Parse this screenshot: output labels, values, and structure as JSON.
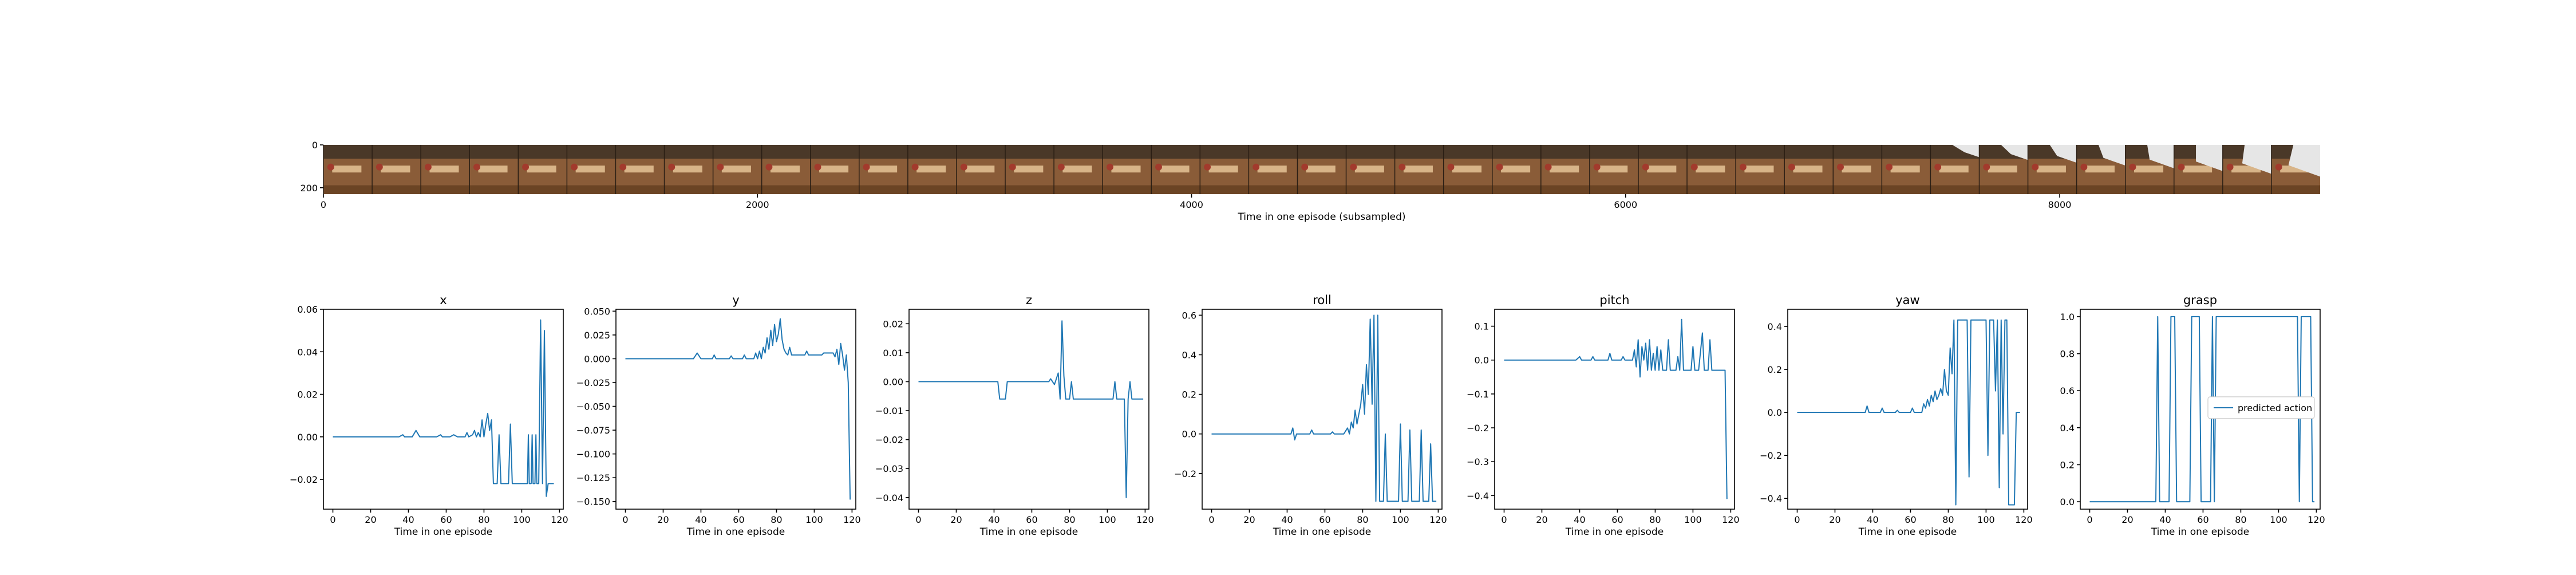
{
  "chart_data": [
    {
      "type": "image-strip",
      "xlabel": "Time in one episode (subsampled)",
      "x_ticks": [
        0,
        2000,
        4000,
        6000,
        8000
      ],
      "y_ticks": [
        0,
        200
      ],
      "xlim": [
        0,
        9200
      ],
      "ylim": [
        0,
        230
      ],
      "frame_count": 41,
      "colors": {
        "floor": "#8a5c38",
        "wall": "#4a3828",
        "shelf": "#d8b488",
        "object": "#a23a2c",
        "arm": "#e6e6e6"
      },
      "arm_visible_from_frame": 33
    },
    {
      "type": "line",
      "title": "x",
      "xlabel": "Time in one episode",
      "xlim": [
        -5,
        122
      ],
      "ylim": [
        -0.034,
        0.06
      ],
      "x_ticks": [
        0,
        20,
        40,
        60,
        80,
        100,
        120
      ],
      "y_ticks": [
        0.06,
        0.04,
        0.02,
        0.0,
        -0.02
      ],
      "y_tick_labels": [
        "0.06",
        "0.04",
        "0.02",
        "0.00",
        "−0.02"
      ],
      "points": [
        [
          0,
          0
        ],
        [
          35,
          0
        ],
        [
          37,
          0.001
        ],
        [
          38,
          0
        ],
        [
          42,
          0
        ],
        [
          44,
          0.003
        ],
        [
          46,
          0
        ],
        [
          55,
          0
        ],
        [
          57,
          0.001
        ],
        [
          58,
          0
        ],
        [
          62,
          0
        ],
        [
          64,
          0.001
        ],
        [
          66,
          0
        ],
        [
          70,
          0
        ],
        [
          71,
          0.002
        ],
        [
          72,
          0
        ],
        [
          74,
          0.001
        ],
        [
          75,
          0.003
        ],
        [
          76,
          0
        ],
        [
          77,
          0.002
        ],
        [
          78,
          0
        ],
        [
          79,
          0.008
        ],
        [
          80,
          0
        ],
        [
          81,
          0.006
        ],
        [
          82,
          0.011
        ],
        [
          83,
          0.003
        ],
        [
          84,
          0.008
        ],
        [
          85,
          -0.022
        ],
        [
          87,
          -0.022
        ],
        [
          88,
          0.001
        ],
        [
          89,
          -0.022
        ],
        [
          93,
          -0.022
        ],
        [
          94,
          0.006
        ],
        [
          95,
          -0.022
        ],
        [
          103,
          -0.022
        ],
        [
          103.5,
          0.001
        ],
        [
          104,
          -0.022
        ],
        [
          105,
          -0.022
        ],
        [
          105.5,
          0.001
        ],
        [
          106,
          -0.022
        ],
        [
          107,
          -0.022
        ],
        [
          107.5,
          0.001
        ],
        [
          108,
          -0.022
        ],
        [
          109,
          -0.022
        ],
        [
          110,
          0.055
        ],
        [
          111,
          -0.022
        ],
        [
          112,
          0.05
        ],
        [
          113,
          -0.028
        ],
        [
          114,
          -0.022
        ],
        [
          117,
          -0.022
        ]
      ]
    },
    {
      "type": "line",
      "title": "y",
      "xlabel": "Time in one episode",
      "xlim": [
        -5,
        122
      ],
      "ylim": [
        -0.158,
        0.052
      ],
      "x_ticks": [
        0,
        20,
        40,
        60,
        80,
        100,
        120
      ],
      "y_ticks": [
        0.05,
        0.025,
        0.0,
        -0.025,
        -0.05,
        -0.075,
        -0.1,
        -0.125,
        -0.15
      ],
      "y_tick_labels": [
        "0.050",
        "0.025",
        "0.000",
        "−0.025",
        "−0.050",
        "−0.075",
        "−0.100",
        "−0.125",
        "−0.150"
      ],
      "points": [
        [
          0,
          0
        ],
        [
          36,
          0
        ],
        [
          38,
          0.006
        ],
        [
          40,
          0
        ],
        [
          46,
          0
        ],
        [
          47,
          0.004
        ],
        [
          48,
          0
        ],
        [
          55,
          0
        ],
        [
          56,
          0.003
        ],
        [
          57,
          0
        ],
        [
          62,
          0
        ],
        [
          63,
          0.004
        ],
        [
          64,
          0
        ],
        [
          68,
          0
        ],
        [
          69,
          0.006
        ],
        [
          70,
          0
        ],
        [
          71,
          0.008
        ],
        [
          72,
          0
        ],
        [
          73,
          0.012
        ],
        [
          74,
          0.006
        ],
        [
          75,
          0.022
        ],
        [
          76,
          0.01
        ],
        [
          77,
          0.03
        ],
        [
          78,
          0.014
        ],
        [
          79,
          0.036
        ],
        [
          80,
          0.018
        ],
        [
          81,
          0.026
        ],
        [
          82,
          0.042
        ],
        [
          83,
          0.02
        ],
        [
          84,
          0.01
        ],
        [
          85,
          0.006
        ],
        [
          86,
          0.004
        ],
        [
          87,
          0.012
        ],
        [
          88,
          0.004
        ],
        [
          95,
          0.004
        ],
        [
          96,
          0.008
        ],
        [
          97,
          0.004
        ],
        [
          104,
          0.004
        ],
        [
          105,
          0.006
        ],
        [
          110,
          0.006
        ],
        [
          111,
          0.002
        ],
        [
          112,
          0.01
        ],
        [
          113,
          -0.006
        ],
        [
          114,
          0.016
        ],
        [
          115,
          0.004
        ],
        [
          116,
          -0.012
        ],
        [
          117,
          0.004
        ],
        [
          118,
          -0.025
        ],
        [
          119,
          -0.148
        ]
      ]
    },
    {
      "type": "line",
      "title": "z",
      "xlabel": "Time in one episode",
      "xlim": [
        -5,
        122
      ],
      "ylim": [
        -0.044,
        0.025
      ],
      "x_ticks": [
        0,
        20,
        40,
        60,
        80,
        100,
        120
      ],
      "y_ticks": [
        0.02,
        0.01,
        0.0,
        -0.01,
        -0.02,
        -0.03,
        -0.04
      ],
      "y_tick_labels": [
        "0.02",
        "0.01",
        "0.00",
        "−0.01",
        "−0.02",
        "−0.03",
        "−0.04"
      ],
      "points": [
        [
          0,
          0
        ],
        [
          42,
          0
        ],
        [
          43,
          -0.006
        ],
        [
          46,
          -0.006
        ],
        [
          47,
          0
        ],
        [
          69,
          0
        ],
        [
          70,
          0.001
        ],
        [
          71,
          0
        ],
        [
          72,
          -0.001
        ],
        [
          73,
          0.001
        ],
        [
          74,
          0.003
        ],
        [
          75,
          -0.006
        ],
        [
          76,
          0.021
        ],
        [
          77,
          0.002
        ],
        [
          78,
          -0.006
        ],
        [
          80,
          -0.006
        ],
        [
          81,
          0
        ],
        [
          82,
          -0.006
        ],
        [
          103,
          -0.006
        ],
        [
          104,
          0
        ],
        [
          105,
          -0.006
        ],
        [
          108,
          -0.006
        ],
        [
          109,
          -0.006
        ],
        [
          110,
          -0.04
        ],
        [
          111,
          -0.006
        ],
        [
          112,
          0
        ],
        [
          113,
          -0.006
        ],
        [
          119,
          -0.006
        ]
      ]
    },
    {
      "type": "line",
      "title": "roll",
      "xlabel": "Time in one episode",
      "xlim": [
        -5,
        122
      ],
      "ylim": [
        -0.38,
        0.63
      ],
      "x_ticks": [
        0,
        20,
        40,
        60,
        80,
        100,
        120
      ],
      "y_ticks": [
        0.6,
        0.4,
        0.2,
        0.0,
        -0.2
      ],
      "y_tick_labels": [
        "0.6",
        "0.4",
        "0.2",
        "0.0",
        "−0.2"
      ],
      "points": [
        [
          0,
          0
        ],
        [
          42,
          0
        ],
        [
          43,
          0.03
        ],
        [
          44,
          -0.03
        ],
        [
          45,
          0
        ],
        [
          52,
          0
        ],
        [
          53,
          0.02
        ],
        [
          54,
          0
        ],
        [
          63,
          0
        ],
        [
          64,
          0.01
        ],
        [
          65,
          0
        ],
        [
          70,
          0
        ],
        [
          72,
          0.03
        ],
        [
          73,
          0
        ],
        [
          74,
          0.06
        ],
        [
          75,
          0.03
        ],
        [
          76,
          0.12
        ],
        [
          77,
          0.05
        ],
        [
          78,
          0.1
        ],
        [
          79,
          0.15
        ],
        [
          80,
          0.25
        ],
        [
          81,
          0.1
        ],
        [
          82,
          0.35
        ],
        [
          83,
          0.2
        ],
        [
          84,
          0.58
        ],
        [
          85,
          0.15
        ],
        [
          86,
          0.6
        ],
        [
          87,
          -0.34
        ],
        [
          88,
          0.6
        ],
        [
          89,
          -0.34
        ],
        [
          91,
          -0.34
        ],
        [
          92,
          0
        ],
        [
          93,
          -0.34
        ],
        [
          99,
          -0.34
        ],
        [
          100,
          0.05
        ],
        [
          101,
          -0.34
        ],
        [
          104,
          -0.34
        ],
        [
          105,
          0.02
        ],
        [
          106,
          -0.34
        ],
        [
          110,
          -0.34
        ],
        [
          111,
          0.02
        ],
        [
          112,
          -0.34
        ],
        [
          115,
          -0.34
        ],
        [
          116,
          -0.05
        ],
        [
          117,
          -0.34
        ],
        [
          119,
          -0.34
        ]
      ]
    },
    {
      "type": "line",
      "title": "pitch",
      "xlabel": "Time in one episode",
      "xlim": [
        -5,
        122
      ],
      "ylim": [
        -0.44,
        0.15
      ],
      "x_ticks": [
        0,
        20,
        40,
        60,
        80,
        100,
        120
      ],
      "y_ticks": [
        0.1,
        0.0,
        -0.1,
        -0.2,
        -0.3,
        -0.4
      ],
      "y_tick_labels": [
        "0.1",
        "0.0",
        "−0.1",
        "−0.2",
        "−0.3",
        "−0.4"
      ],
      "points": [
        [
          0,
          0
        ],
        [
          38,
          0
        ],
        [
          40,
          0.01
        ],
        [
          41,
          0
        ],
        [
          46,
          0
        ],
        [
          47,
          0.01
        ],
        [
          48,
          0
        ],
        [
          55,
          0
        ],
        [
          56,
          0.02
        ],
        [
          57,
          0
        ],
        [
          62,
          0
        ],
        [
          63,
          0.01
        ],
        [
          64,
          0
        ],
        [
          68,
          0
        ],
        [
          69,
          0.03
        ],
        [
          70,
          -0.02
        ],
        [
          71,
          0.06
        ],
        [
          72,
          -0.05
        ],
        [
          73,
          0.04
        ],
        [
          74,
          0
        ],
        [
          75,
          0.05
        ],
        [
          76,
          -0.03
        ],
        [
          77,
          0.06
        ],
        [
          78,
          -0.03
        ],
        [
          79,
          0.02
        ],
        [
          80,
          -0.03
        ],
        [
          81,
          0.04
        ],
        [
          82,
          -0.03
        ],
        [
          83,
          0.03
        ],
        [
          84,
          -0.03
        ],
        [
          86,
          -0.03
        ],
        [
          87,
          0.06
        ],
        [
          88,
          -0.03
        ],
        [
          91,
          -0.03
        ],
        [
          92,
          0.01
        ],
        [
          93,
          -0.03
        ],
        [
          94,
          0.12
        ],
        [
          95,
          -0.03
        ],
        [
          99,
          -0.03
        ],
        [
          100,
          0.04
        ],
        [
          101,
          -0.03
        ],
        [
          103,
          -0.03
        ],
        [
          105,
          0.08
        ],
        [
          106,
          -0.03
        ],
        [
          108,
          -0.03
        ],
        [
          109,
          0.06
        ],
        [
          110,
          -0.03
        ],
        [
          117,
          -0.03
        ],
        [
          118,
          -0.41
        ]
      ]
    },
    {
      "type": "line",
      "title": "yaw",
      "xlabel": "Time in one episode",
      "xlim": [
        -5,
        122
      ],
      "ylim": [
        -0.45,
        0.48
      ],
      "x_ticks": [
        0,
        20,
        40,
        60,
        80,
        100,
        120
      ],
      "y_ticks": [
        0.4,
        0.2,
        0.0,
        -0.2,
        -0.4
      ],
      "y_tick_labels": [
        "0.4",
        "0.2",
        "0.0",
        "−0.2",
        "−0.4"
      ],
      "points": [
        [
          0,
          0
        ],
        [
          36,
          0
        ],
        [
          37,
          0.03
        ],
        [
          38,
          0
        ],
        [
          44,
          0
        ],
        [
          45,
          0.02
        ],
        [
          46,
          0
        ],
        [
          52,
          0
        ],
        [
          53,
          0.01
        ],
        [
          54,
          0
        ],
        [
          60,
          0
        ],
        [
          61,
          0.02
        ],
        [
          62,
          0
        ],
        [
          66,
          0
        ],
        [
          67,
          0.04
        ],
        [
          68,
          0.02
        ],
        [
          69,
          0.06
        ],
        [
          70,
          0.03
        ],
        [
          71,
          0.08
        ],
        [
          72,
          0.05
        ],
        [
          73,
          0.1
        ],
        [
          74,
          0.06
        ],
        [
          75,
          0.08
        ],
        [
          76,
          0.11
        ],
        [
          77,
          0.08
        ],
        [
          78,
          0.2
        ],
        [
          79,
          0.1
        ],
        [
          80,
          0.08
        ],
        [
          81,
          0.3
        ],
        [
          82,
          0.18
        ],
        [
          83,
          0.43
        ],
        [
          84,
          -0.43
        ],
        [
          85,
          0.43
        ],
        [
          88,
          0.43
        ],
        [
          89,
          0.43
        ],
        [
          90,
          0.43
        ],
        [
          91,
          -0.3
        ],
        [
          92,
          0.43
        ],
        [
          100,
          0.43
        ],
        [
          101,
          -0.2
        ],
        [
          102,
          0.43
        ],
        [
          104,
          0.43
        ],
        [
          105,
          0.1
        ],
        [
          106,
          0.43
        ],
        [
          107,
          -0.35
        ],
        [
          108,
          0.43
        ],
        [
          109,
          -0.1
        ],
        [
          110,
          0.43
        ],
        [
          111,
          0.43
        ],
        [
          112,
          -0.43
        ],
        [
          115,
          -0.43
        ],
        [
          116,
          0
        ],
        [
          118,
          0
        ]
      ]
    },
    {
      "type": "line",
      "title": "grasp",
      "xlabel": "Time in one episode",
      "xlim": [
        -5,
        122
      ],
      "ylim": [
        -0.04,
        1.04
      ],
      "x_ticks": [
        0,
        20,
        40,
        60,
        80,
        100,
        120
      ],
      "y_ticks": [
        1.0,
        0.8,
        0.6,
        0.4,
        0.2,
        0.0
      ],
      "y_tick_labels": [
        "1.0",
        "0.8",
        "0.6",
        "0.4",
        "0.2",
        "0.0"
      ],
      "legend": [
        "predicted action"
      ],
      "legend_placement": "right",
      "points": [
        [
          0,
          0
        ],
        [
          35,
          0
        ],
        [
          36,
          1
        ],
        [
          37,
          0
        ],
        [
          42,
          0
        ],
        [
          43,
          1
        ],
        [
          45,
          1
        ],
        [
          46,
          0
        ],
        [
          53,
          0
        ],
        [
          54,
          1
        ],
        [
          58,
          1
        ],
        [
          59,
          0
        ],
        [
          64,
          0
        ],
        [
          65,
          1
        ],
        [
          66,
          0
        ],
        [
          67,
          1
        ],
        [
          110,
          1
        ],
        [
          111,
          0
        ],
        [
          112,
          1
        ],
        [
          117,
          1
        ],
        [
          118,
          0
        ],
        [
          119,
          0
        ]
      ]
    }
  ]
}
